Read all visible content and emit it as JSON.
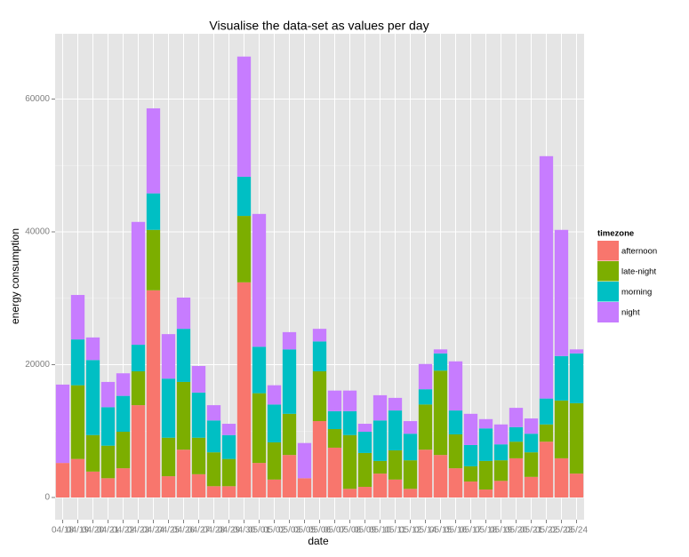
{
  "chart_data": {
    "type": "stacked_bar",
    "title": "Visualise the data-set as values per day",
    "x_label": "date",
    "y_label": "energy consumption",
    "legend_title": "timezone",
    "categories": [
      "04/18",
      "04/19",
      "04/20",
      "04/21",
      "04/22",
      "04/23",
      "04/24",
      "04/25",
      "04/26",
      "04/27",
      "04/28",
      "04/29",
      "04/30",
      "05/01",
      "05/02",
      "05/03",
      "05/05",
      "05/06",
      "05/07",
      "05/08",
      "05/09",
      "05/10",
      "05/11",
      "05/12",
      "05/14",
      "05/15",
      "05/16",
      "05/17",
      "05/18",
      "05/19",
      "05/20",
      "05/21",
      "05/22",
      "05/23",
      "05/24"
    ],
    "series": [
      {
        "name": "afternoon",
        "color": "#F8766D",
        "values": [
          5200,
          5800,
          3900,
          2900,
          4400,
          13900,
          31200,
          3200,
          7200,
          3500,
          1700,
          1700,
          32400,
          5200,
          2700,
          6400,
          2900,
          11500,
          7500,
          1300,
          1600,
          3600,
          2700,
          1300,
          7200,
          6400,
          4400,
          2400,
          1200,
          2500,
          5900,
          3100,
          8400,
          5900,
          3600
        ]
      },
      {
        "name": "late-night",
        "color": "#7CAE00",
        "values": [
          0,
          11100,
          5500,
          4900,
          5500,
          5100,
          9100,
          5800,
          10200,
          5500,
          5100,
          4100,
          10000,
          10500,
          5600,
          6200,
          0,
          7500,
          2800,
          8100,
          5100,
          1900,
          4400,
          4300,
          6800,
          12700,
          5100,
          2300,
          4300,
          3100,
          2500,
          3700,
          2600,
          8700,
          10600
        ]
      },
      {
        "name": "morning",
        "color": "#00BFC4",
        "values": [
          0,
          6900,
          11300,
          5800,
          5400,
          4000,
          5500,
          8900,
          8000,
          6800,
          4800,
          3600,
          5900,
          7000,
          5700,
          9700,
          0,
          4500,
          2700,
          3600,
          3200,
          6100,
          6000,
          4000,
          2300,
          2600,
          3600,
          3200,
          4900,
          2400,
          2200,
          2800,
          3900,
          6700,
          7500
        ]
      },
      {
        "name": "night",
        "color": "#C77CFF",
        "values": [
          11800,
          6700,
          3400,
          3800,
          3400,
          18500,
          12800,
          6700,
          4700,
          4000,
          2300,
          1700,
          18100,
          20000,
          2900,
          2600,
          5300,
          1900,
          3100,
          3100,
          1200,
          3800,
          1900,
          1900,
          3800,
          600,
          7400,
          4700,
          1400,
          3000,
          2900,
          2300,
          36500,
          19000,
          600
        ]
      }
    ],
    "ylim": [
      -3344,
      69833
    ],
    "yticks": [
      0,
      20000,
      40000,
      60000
    ],
    "y_minor_ticks": [
      10000,
      30000,
      50000
    ],
    "grid": true,
    "legend_position": "right"
  }
}
